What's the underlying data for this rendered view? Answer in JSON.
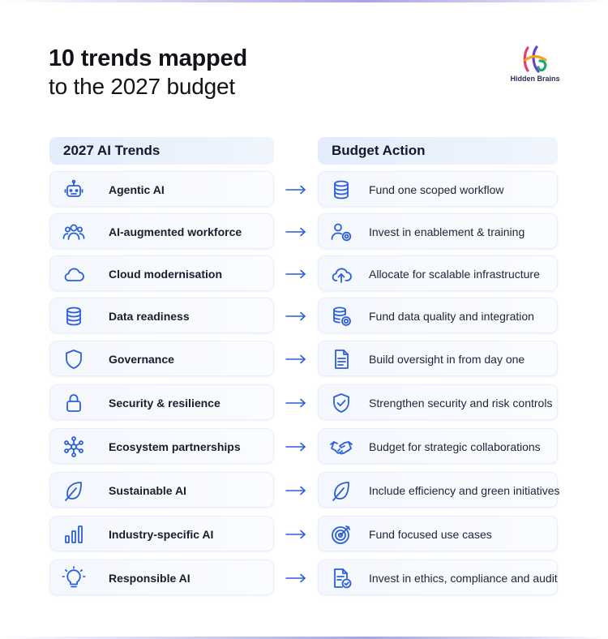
{
  "header": {
    "title": "10 trends mapped",
    "subtitle": "to the 2027 budget",
    "brand": "Hidden Brains"
  },
  "columns": {
    "left_title": "2027 AI Trends",
    "right_title": "Budget Action"
  },
  "accent_color": "#2b5fd9",
  "rows": [
    {
      "trend": "Agentic AI",
      "action": "Fund one scoped workflow",
      "trend_icon": "robot-icon",
      "action_icon": "database-icon"
    },
    {
      "trend": "AI-augmented workforce",
      "action": "Invest in enablement & training",
      "trend_icon": "people-group-icon",
      "action_icon": "user-gear-icon"
    },
    {
      "trend": "Cloud modernisation",
      "action": "Allocate for scalable infrastructure",
      "trend_icon": "cloud-icon",
      "action_icon": "cloud-upload-icon"
    },
    {
      "trend": "Data readiness",
      "action": "Fund data quality and integration",
      "trend_icon": "database-icon",
      "action_icon": "database-gear-icon"
    },
    {
      "trend": "Governance",
      "action": "Build oversight in from day one",
      "trend_icon": "shield-icon",
      "action_icon": "document-icon"
    },
    {
      "trend": "Security & resilience",
      "action": "Strengthen security and risk controls",
      "trend_icon": "lock-icon",
      "action_icon": "shield-check-icon"
    },
    {
      "trend": "Ecosystem partnerships",
      "action": "Budget for strategic collaborations",
      "trend_icon": "network-icon",
      "action_icon": "handshake-icon"
    },
    {
      "trend": "Sustainable AI",
      "action": "Include efficiency and green initiatives",
      "trend_icon": "leaf-icon",
      "action_icon": "leaf-icon"
    },
    {
      "trend": "Industry-specific AI",
      "action": "Fund focused use cases",
      "trend_icon": "bar-chart-icon",
      "action_icon": "target-icon"
    },
    {
      "trend": "Responsible AI",
      "action": "Invest in ethics, compliance and audit",
      "trend_icon": "lightbulb-icon",
      "action_icon": "document-check-icon"
    }
  ]
}
